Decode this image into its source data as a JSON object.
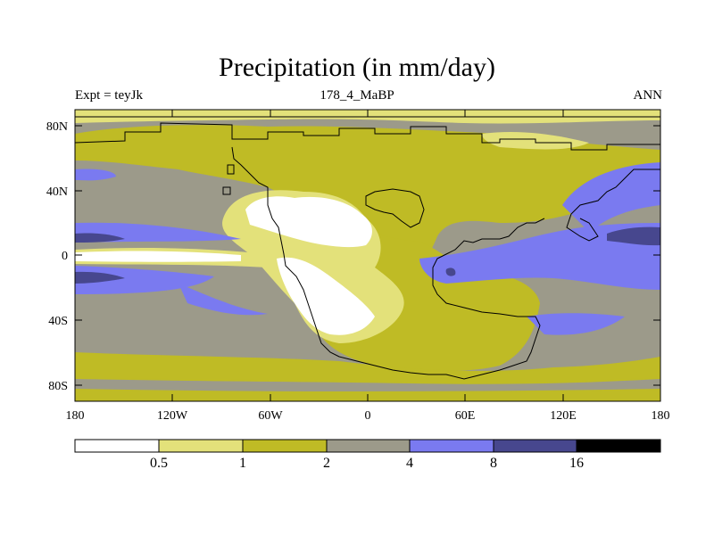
{
  "title": "Precipitation (in mm/day)",
  "subtitle_left": "Expt = teyJk",
  "subtitle_center": "178_4_MaBP",
  "subtitle_right": "ANN",
  "y_ticks": [
    "80N",
    "40N",
    "0",
    "40S",
    "80S"
  ],
  "x_ticks": [
    "180",
    "120W",
    "60W",
    "0",
    "60E",
    "120E",
    "180"
  ],
  "colorbar": {
    "labels": [
      "0.5",
      "1",
      "2",
      "4",
      "8",
      "16"
    ],
    "colors": [
      "#ffffff",
      "#e3e17a",
      "#bfbb25",
      "#9c9a8a",
      "#7a7af0",
      "#47478e",
      "#000000"
    ]
  },
  "palette": {
    "lt0_5": "#ffffff",
    "b0_5_1": "#e3e17a",
    "b1_2": "#bfbb25",
    "b2_4": "#9c9a8a",
    "b4_8": "#7a7af0",
    "b8_16": "#47478e"
  }
}
